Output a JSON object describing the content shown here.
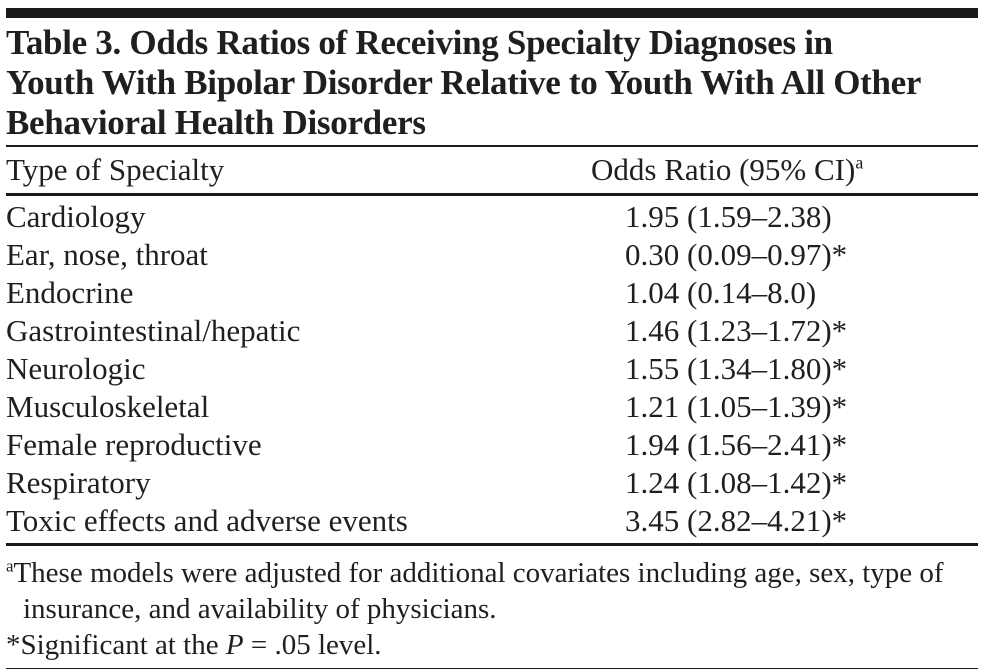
{
  "page": {
    "background_color": "#ffffff",
    "text_color": "#1f1f1f",
    "rule_color": "#1a1a1a"
  },
  "table": {
    "title_lines": [
      "Table 3. Odds Ratios of Receiving Specialty Diagnoses in",
      "Youth With Bipolar Disorder Relative to Youth With All Other",
      "Behavioral Health Disorders"
    ],
    "header": {
      "col1": "Type of Specialty",
      "col2": "Odds Ratio (95% CI)",
      "col2_superscript": "a"
    },
    "rows": [
      {
        "specialty": "Cardiology",
        "odds_ratio": "1.95 (1.59–2.38)"
      },
      {
        "specialty": "Ear, nose, throat",
        "odds_ratio": "0.30 (0.09–0.97)*"
      },
      {
        "specialty": "Endocrine",
        "odds_ratio": "1.04 (0.14–8.0)"
      },
      {
        "specialty": "Gastrointestinal/hepatic",
        "odds_ratio": "1.46 (1.23–1.72)*"
      },
      {
        "specialty": "Neurologic",
        "odds_ratio": "1.55 (1.34–1.80)*"
      },
      {
        "specialty": "Musculoskeletal",
        "odds_ratio": "1.21 (1.05–1.39)*"
      },
      {
        "specialty": "Female reproductive",
        "odds_ratio": "1.94 (1.56–2.41)*"
      },
      {
        "specialty": "Respiratory",
        "odds_ratio": "1.24 (1.08–1.42)*"
      },
      {
        "specialty": "Toxic effects and adverse events",
        "odds_ratio": "3.45 (2.82–4.21)*"
      }
    ],
    "footnotes": {
      "adjustment": {
        "marker": "a",
        "text": "These models were adjusted for additional covariates including age, sex, type of insurance, and availability of physicians."
      },
      "significance": {
        "marker": "*",
        "pre": "Significant at the ",
        "italic": "P",
        "post": " = .05 level."
      }
    }
  }
}
